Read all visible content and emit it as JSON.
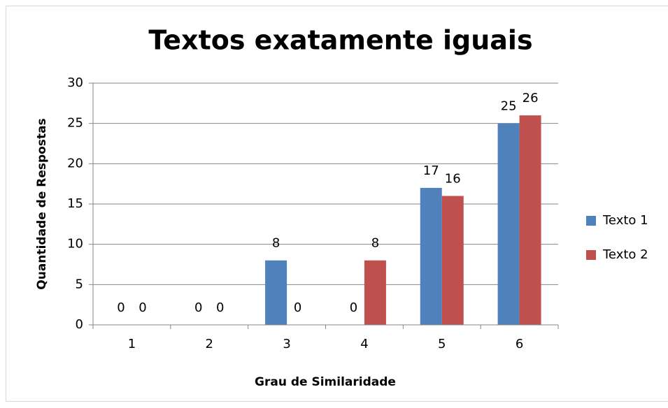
{
  "chart_data": {
    "type": "bar",
    "title": "Textos exatamente iguais",
    "xlabel": "Grau de Similaridade",
    "ylabel": "Quantidade de Respostas",
    "categories": [
      "1",
      "2",
      "3",
      "4",
      "5",
      "6"
    ],
    "series": [
      {
        "name": "Texto 1",
        "color": "#4f81bd",
        "values": [
          0,
          0,
          8,
          0,
          17,
          25
        ]
      },
      {
        "name": "Texto 2",
        "color": "#c0504d",
        "values": [
          0,
          0,
          0,
          8,
          16,
          26
        ]
      }
    ],
    "ylim": [
      0,
      30
    ],
    "yticks": [
      0,
      5,
      10,
      15,
      20,
      25,
      30
    ],
    "grid": true,
    "legend": "right"
  }
}
